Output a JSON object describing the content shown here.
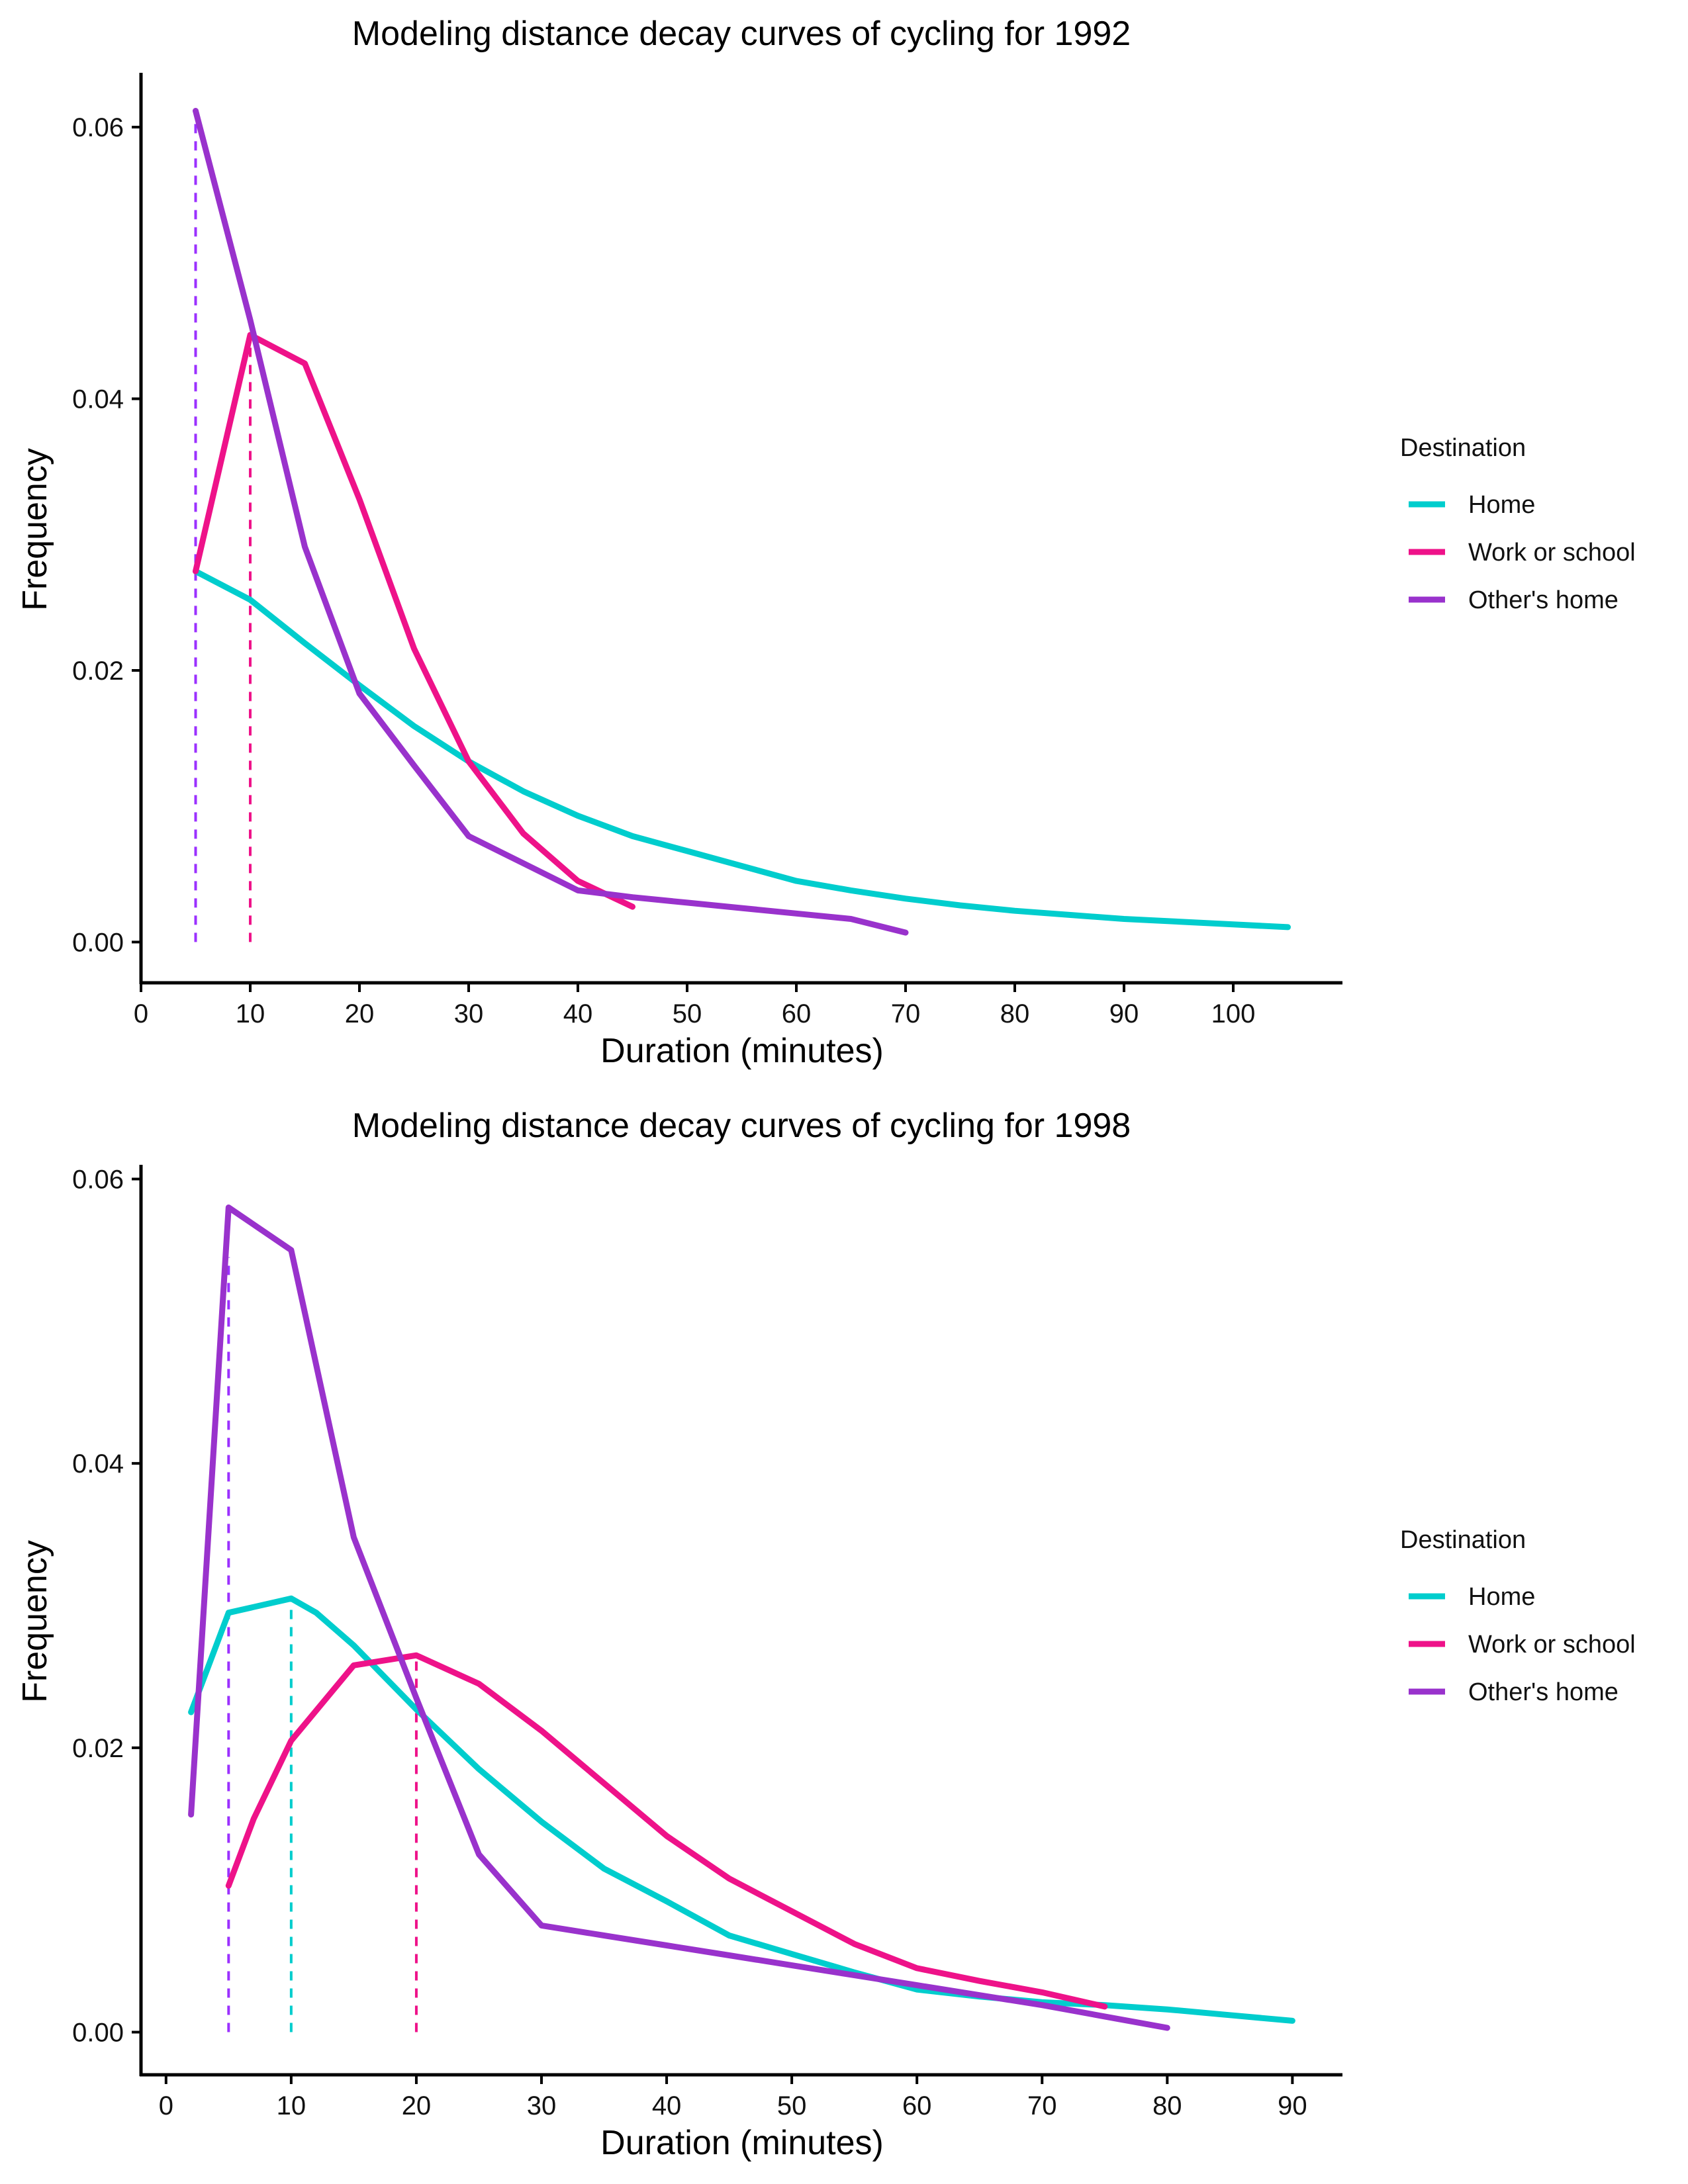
{
  "chart_data": [
    {
      "type": "line",
      "title": "Modeling distance decay curves of cycling for 1992",
      "xlabel": "Duration (minutes)",
      "ylabel": "Frequency",
      "xlim": [
        0,
        110
      ],
      "ylim": [
        -0.003,
        0.064
      ],
      "xticks": [
        0,
        10,
        20,
        30,
        40,
        50,
        60,
        70,
        80,
        90,
        100
      ],
      "yticks": [
        0.0,
        0.02,
        0.04,
        0.06
      ],
      "ytick_labels": [
        "0.00",
        "0.02",
        "0.04",
        "0.06"
      ],
      "grid": false,
      "legend": {
        "title": "Destination",
        "position": "right"
      },
      "series": [
        {
          "name": "Home",
          "color": "#00CDCD",
          "x": [
            5,
            10,
            15,
            20,
            25,
            30,
            35,
            40,
            45,
            50,
            55,
            60,
            65,
            70,
            75,
            80,
            85,
            90,
            95,
            100,
            105
          ],
          "y": [
            0.0273,
            0.0252,
            0.022,
            0.0189,
            0.0159,
            0.0133,
            0.0111,
            0.0093,
            0.0078,
            0.0067,
            0.0056,
            0.0045,
            0.0038,
            0.0032,
            0.0027,
            0.0023,
            0.002,
            0.0017,
            0.0015,
            0.0013,
            0.0011
          ]
        },
        {
          "name": "Work or school",
          "color": "#EE1289",
          "x": [
            5,
            10,
            15,
            20,
            25,
            30,
            35,
            40,
            45
          ],
          "y": [
            0.0273,
            0.0447,
            0.0426,
            0.0326,
            0.0216,
            0.0133,
            0.008,
            0.0045,
            0.0026
          ]
        },
        {
          "name": "Other's home",
          "color": "#9932CC",
          "x": [
            5,
            10,
            15,
            20,
            25,
            30,
            35,
            40,
            45,
            50,
            55,
            60,
            65,
            70
          ],
          "y": [
            0.0612,
            0.0458,
            0.0291,
            0.0183,
            0.013,
            0.0078,
            0.0058,
            0.0038,
            0.0033,
            0.0029,
            0.0025,
            0.0021,
            0.0017,
            0.0007
          ]
        }
      ],
      "reference_lines": [
        {
          "x": 5,
          "y_top": 0.0612,
          "color": "#9B30FF"
        },
        {
          "x": 10,
          "y_top": 0.0447,
          "color": "#EE1289"
        }
      ]
    },
    {
      "type": "line",
      "title": "Modeling distance decay curves of cycling for 1998",
      "xlabel": "Duration (minutes)",
      "ylabel": "Frequency",
      "xlim": [
        -2,
        94
      ],
      "ylim": [
        -0.003,
        0.061
      ],
      "xticks": [
        0,
        10,
        20,
        30,
        40,
        50,
        60,
        70,
        80,
        90
      ],
      "yticks": [
        0.0,
        0.02,
        0.04,
        0.06
      ],
      "ytick_labels": [
        "0.00",
        "0.02",
        "0.04",
        "0.06"
      ],
      "grid": false,
      "legend": {
        "title": "Destination",
        "position": "right"
      },
      "series": [
        {
          "name": "Home",
          "color": "#00CDCD",
          "x": [
            2,
            5,
            10,
            12,
            15,
            20,
            25,
            30,
            35,
            40,
            45,
            50,
            55,
            60,
            65,
            70,
            75,
            80,
            85,
            90
          ],
          "y": [
            0.0225,
            0.0295,
            0.0305,
            0.0295,
            0.0272,
            0.0227,
            0.0185,
            0.0148,
            0.0115,
            0.0092,
            0.0068,
            0.0055,
            0.0042,
            0.003,
            0.0025,
            0.0021,
            0.0019,
            0.0016,
            0.0012,
            0.0008
          ]
        },
        {
          "name": "Work or school",
          "color": "#EE1289",
          "x": [
            5,
            7,
            10,
            15,
            20,
            25,
            30,
            35,
            40,
            45,
            50,
            55,
            60,
            65,
            70,
            75
          ],
          "y": [
            0.0103,
            0.015,
            0.0205,
            0.0258,
            0.0265,
            0.0245,
            0.0212,
            0.0175,
            0.0138,
            0.0108,
            0.0085,
            0.0062,
            0.0045,
            0.0036,
            0.0028,
            0.0018
          ]
        },
        {
          "name": "Other's home",
          "color": "#9932CC",
          "x": [
            2,
            5,
            10,
            15,
            20,
            25,
            30,
            35,
            40,
            45,
            50,
            55,
            60,
            65,
            70,
            75,
            80
          ],
          "y": [
            0.0153,
            0.058,
            0.055,
            0.0348,
            0.0235,
            0.0125,
            0.0075,
            0.0068,
            0.0061,
            0.0054,
            0.0047,
            0.004,
            0.0033,
            0.0026,
            0.0019,
            0.0011,
            0.0003
          ]
        }
      ],
      "reference_lines": [
        {
          "x": 5,
          "y_top": 0.0545,
          "color": "#9B30FF"
        },
        {
          "x": 10,
          "y_top": 0.0305,
          "color": "#00CDCD"
        },
        {
          "x": 20,
          "y_top": 0.0262,
          "color": "#EE1289"
        }
      ]
    }
  ]
}
